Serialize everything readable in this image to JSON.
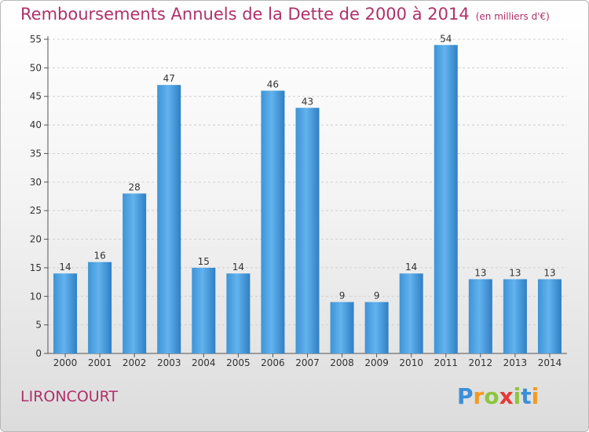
{
  "chart_data": {
    "type": "bar",
    "title": "Remboursements Annuels de la Dette de 2000 à 2014",
    "unit_note": "(en milliers d'€)",
    "categories": [
      "2000",
      "2001",
      "2002",
      "2003",
      "2004",
      "2005",
      "2006",
      "2007",
      "2008",
      "2009",
      "2010",
      "2011",
      "2012",
      "2013",
      "2014"
    ],
    "values": [
      14,
      16,
      28,
      47,
      15,
      14,
      46,
      43,
      9,
      9,
      14,
      54,
      13,
      13,
      13
    ],
    "ylim": [
      0,
      55
    ],
    "yticks": [
      0,
      5,
      10,
      15,
      20,
      25,
      30,
      35,
      40,
      45,
      50,
      55
    ],
    "xlabel": "",
    "ylabel": "",
    "bar_color": "#4a9fe0",
    "title_color": "#b0306a"
  },
  "commune": "LIRONCOURT",
  "logo": {
    "letters": [
      "P",
      "r",
      "o",
      "x",
      "i",
      "t",
      "i"
    ],
    "colors": [
      "#3a8fd8",
      "#f39a1f",
      "#8cc63e",
      "#e53935",
      "#8cc63e",
      "#3a8fd8",
      "#f39a1f"
    ]
  }
}
